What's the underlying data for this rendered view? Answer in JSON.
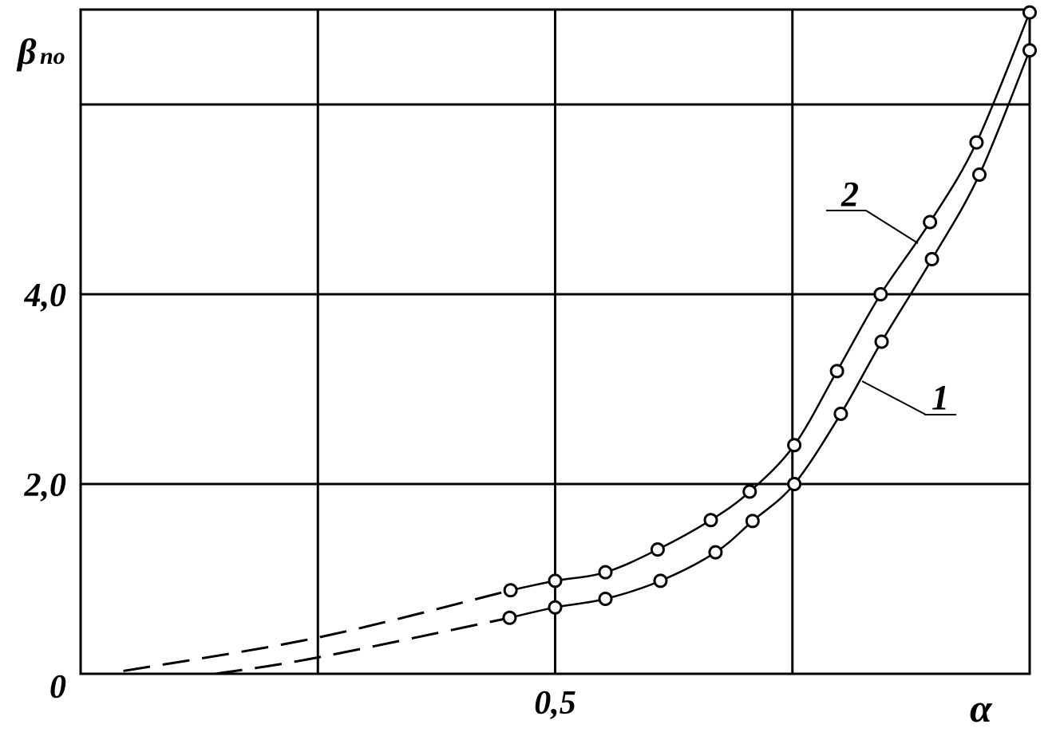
{
  "chart_data": {
    "type": "line",
    "xlabel": "α",
    "ylabel": {
      "symbol": "β",
      "subscript": "по"
    },
    "xlim": [
      0,
      1
    ],
    "ylim": [
      0,
      7
    ],
    "xticks": [
      {
        "value": 0.25,
        "label": null
      },
      {
        "value": 0.5,
        "label": "0,5"
      },
      {
        "value": 0.75,
        "label": null
      }
    ],
    "yticks": [
      {
        "value": 0,
        "label": "0"
      },
      {
        "value": 2,
        "label": "2,0"
      },
      {
        "value": 4,
        "label": "4,0"
      },
      {
        "value": 6,
        "label": null
      }
    ],
    "grid": true,
    "color": "#000000",
    "series": [
      {
        "name": "1",
        "x": [
          0.452,
          0.5,
          0.553,
          0.611,
          0.669,
          0.708,
          0.752,
          0.801,
          0.844,
          0.897,
          0.947,
          1.0
        ],
        "values": [
          0.59,
          0.7,
          0.79,
          0.98,
          1.28,
          1.61,
          2.0,
          2.74,
          3.5,
          4.37,
          5.26,
          6.57
        ],
        "extrapolation": {
          "x": [
            0.142,
            0.249,
            0.452
          ],
          "values": [
            0,
            0.17,
            0.59
          ]
        }
      },
      {
        "name": "2",
        "x": [
          0.453,
          0.5,
          0.553,
          0.608,
          0.664,
          0.705,
          0.752,
          0.797,
          0.843,
          0.895,
          0.944,
          1.0
        ],
        "values": [
          0.88,
          0.98,
          1.07,
          1.31,
          1.62,
          1.92,
          2.41,
          3.19,
          4.0,
          4.76,
          5.6,
          6.97
        ],
        "extrapolation": {
          "x": [
            0.045,
            0.249,
            0.453
          ],
          "values": [
            0.03,
            0.38,
            0.88
          ]
        }
      }
    ]
  }
}
